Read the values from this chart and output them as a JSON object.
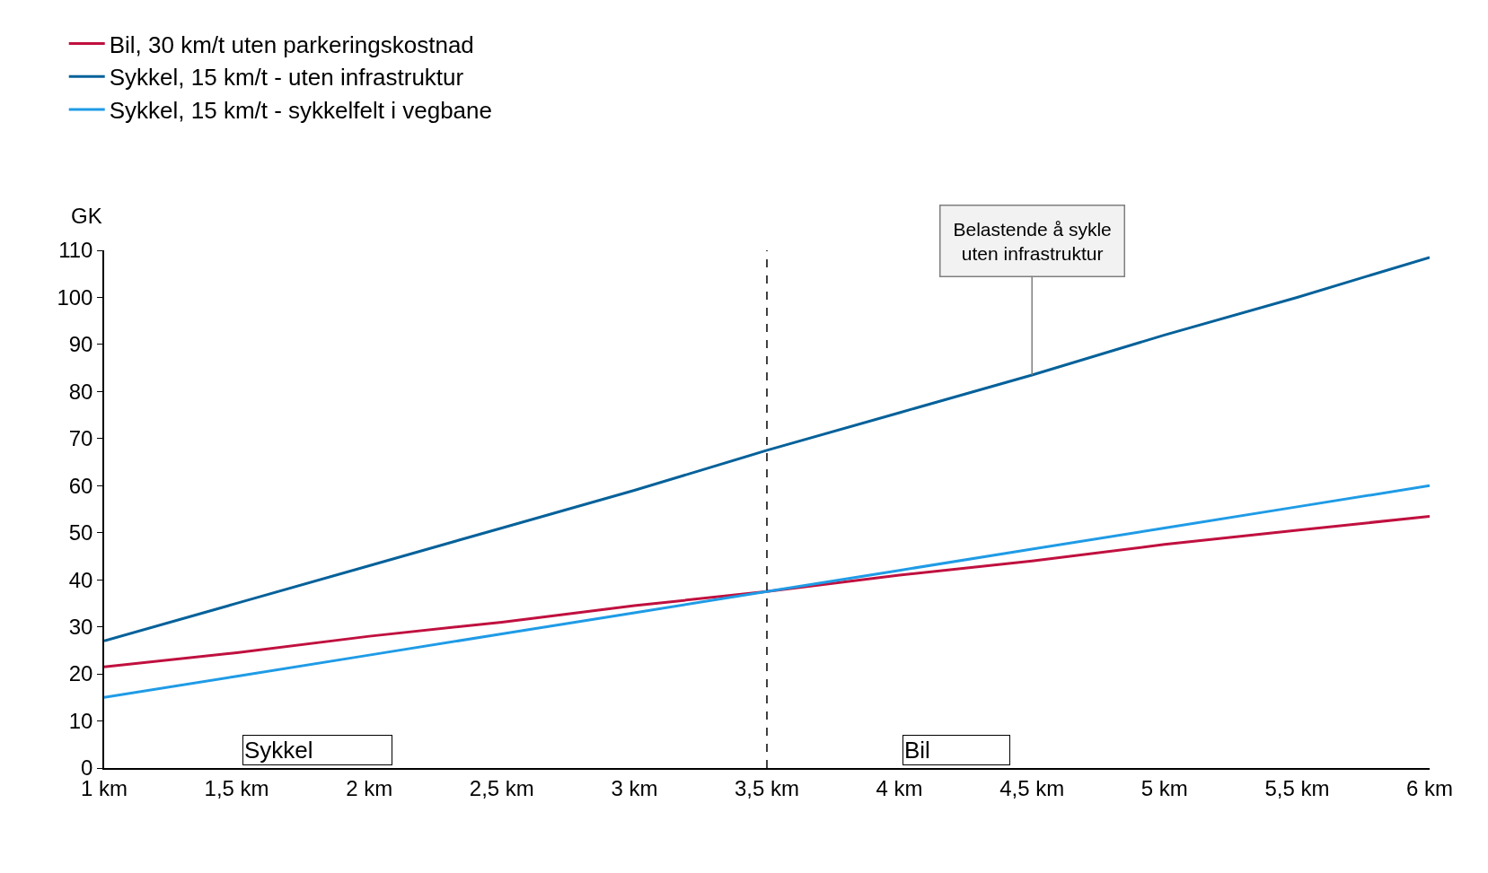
{
  "chart_data": {
    "type": "line",
    "ylabel": "GK",
    "x": [
      1,
      1.5,
      2,
      2.5,
      3,
      3.5,
      4,
      4.5,
      5,
      5.5,
      6
    ],
    "series": [
      {
        "name": "Bil, 30 km/t uten parkeringskostnad",
        "color": "#c0103f",
        "values": [
          21.5,
          24.5,
          28,
          31,
          34.5,
          37.5,
          41,
          44,
          47.5,
          50.5,
          53.5
        ]
      },
      {
        "name": "Sykkel, 15 km/t - uten infrastruktur",
        "color": "#04619a",
        "values": [
          27,
          35,
          43,
          51,
          59,
          67.5,
          75.5,
          83.5,
          92,
          100,
          108.5
        ]
      },
      {
        "name": "Sykkel, 15 km/t - sykkelfelt i vegbane",
        "color": "#1f9be6",
        "values": [
          15,
          19.5,
          24,
          28.5,
          33,
          37.5,
          42,
          46.5,
          51,
          55.5,
          60
        ]
      }
    ],
    "xlim": [
      1,
      6
    ],
    "xticks": [
      {
        "value": 1,
        "label": "1 km"
      },
      {
        "value": 1.5,
        "label": "1,5 km"
      },
      {
        "value": 2,
        "label": "2 km"
      },
      {
        "value": 2.5,
        "label": "2,5 km"
      },
      {
        "value": 3,
        "label": "3 km"
      },
      {
        "value": 3.5,
        "label": "3,5 km"
      },
      {
        "value": 4,
        "label": "4 km"
      },
      {
        "value": 4.5,
        "label": "4,5 km"
      },
      {
        "value": 5,
        "label": "5 km"
      },
      {
        "value": 5.5,
        "label": "5,5 km"
      },
      {
        "value": 6,
        "label": "6 km"
      }
    ],
    "ylim": [
      0,
      110
    ],
    "yticks": [
      0,
      10,
      20,
      30,
      40,
      50,
      60,
      70,
      80,
      90,
      100,
      110
    ],
    "ref_lines": [
      {
        "axis": "x",
        "value": 3.5,
        "color": "#000000",
        "line_style": "dashed"
      }
    ],
    "annotations": [
      "Sykkel",
      "Bil",
      {
        "text": "Belastende å sykle\nuten infrastruktur",
        "x": 4.5,
        "y": 83.5
      }
    ],
    "legend": "top left",
    "marker": "none",
    "line_style": "solid"
  }
}
